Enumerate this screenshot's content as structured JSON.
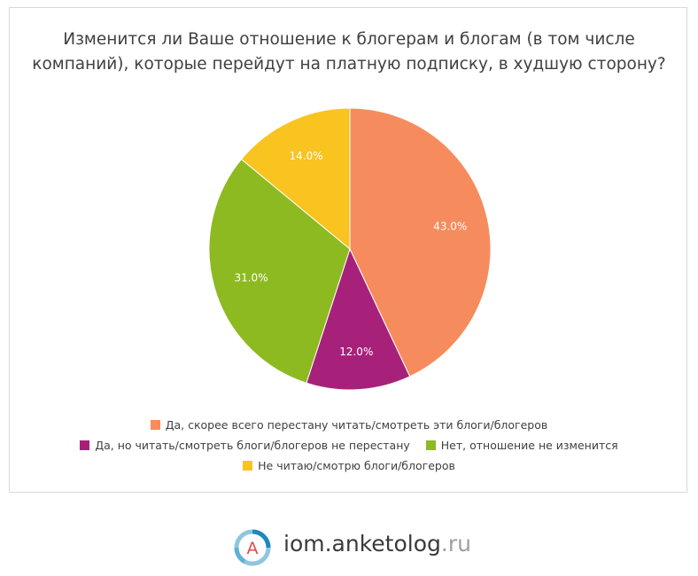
{
  "chart_data": {
    "type": "pie",
    "title_lines": [
      "Изменится ли Ваше отношение к блогерам и блогам (в том числе",
      "компаний), которые перейдут на платную подписку, в худшую сторону?"
    ],
    "slices": [
      {
        "label": "Да, скорее всего перестану читать/смотреть эти блоги/блогеров",
        "value": 43.0,
        "display": "43.0%",
        "color": "#f68c5e"
      },
      {
        "label": "Да, но читать/смотреть блоги/блогеров не перестану",
        "value": 12.0,
        "display": "12.0%",
        "color": "#a7217a"
      },
      {
        "label": "Нет, отношение не изменится",
        "value": 31.0,
        "display": "31.0%",
        "color": "#8dba20"
      },
      {
        "label": "Не читаю/смотрю блоги/блогеров",
        "value": 14.0,
        "display": "14.0%",
        "color": "#f9c320"
      }
    ],
    "legend_position": "bottom"
  },
  "brand": {
    "logo_letter": "A",
    "name": "iom.anketolog",
    "tld": ".ru"
  }
}
